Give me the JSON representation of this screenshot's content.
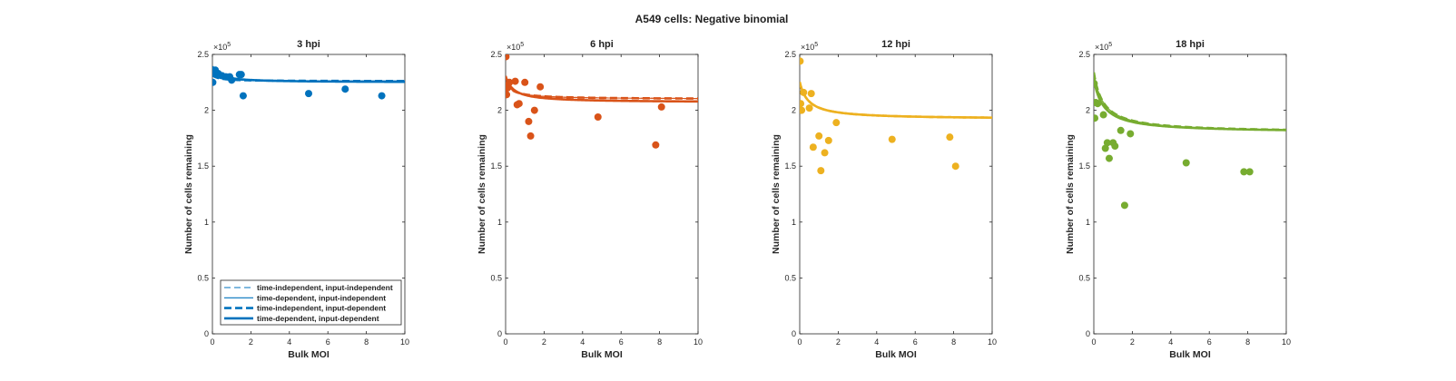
{
  "figure_title": "A549 cells: Negative binomial",
  "chart_data": [
    {
      "type": "scatter",
      "title": "3 hpi",
      "xlabel": "Bulk MOI",
      "ylabel": "Number of cells remaining",
      "xlim": [
        0,
        10
      ],
      "ylim": [
        0,
        250000
      ],
      "xticks": [
        "0",
        "2",
        "4",
        "6",
        "8",
        "10"
      ],
      "yticks": [
        "0",
        "0.5",
        "1",
        "1.5",
        "2",
        "2.5"
      ],
      "y_exponent": "×10",
      "y_exponent_power": "5",
      "color": "#0072BD",
      "points": [
        [
          0.02,
          225000
        ],
        [
          0.05,
          233000
        ],
        [
          0.1,
          235000
        ],
        [
          0.15,
          236000
        ],
        [
          0.3,
          233000
        ],
        [
          0.5,
          231000
        ],
        [
          0.7,
          230000
        ],
        [
          0.9,
          230000
        ],
        [
          1.0,
          227000
        ],
        [
          1.4,
          232000
        ],
        [
          1.5,
          232000
        ],
        [
          1.6,
          213000
        ],
        [
          5.0,
          215000
        ],
        [
          6.9,
          219000
        ],
        [
          8.8,
          213000
        ]
      ],
      "series": [
        {
          "name": "time-independent, input-independent",
          "style": "dashed-thin",
          "a": 226000,
          "b": 1900,
          "c": 0.35
        },
        {
          "name": "time-dependent, input-independent",
          "style": "solid-thin",
          "a": 226000,
          "b": 1900,
          "c": 0.35
        },
        {
          "name": "time-independent, input-dependent",
          "style": "dashed-thick",
          "a": 226000,
          "b": 1900,
          "c": 0.35
        },
        {
          "name": "time-dependent, input-dependent",
          "style": "solid-thick",
          "a": 225000,
          "b": 5000,
          "c": 0.35
        }
      ],
      "legend": "bottom"
    },
    {
      "type": "scatter",
      "title": "6 hpi",
      "xlabel": "Bulk MOI",
      "ylabel": "Number of cells remaining",
      "xlim": [
        0,
        10
      ],
      "ylim": [
        0,
        250000
      ],
      "xticks": [
        "0",
        "2",
        "4",
        "6",
        "8",
        "10"
      ],
      "yticks": [
        "0",
        "0.5",
        "1",
        "1.5",
        "2",
        "2.5"
      ],
      "y_exponent": "×10",
      "y_exponent_power": "5",
      "color": "#D95319",
      "points": [
        [
          0.02,
          248000
        ],
        [
          0.05,
          214000
        ],
        [
          0.1,
          220000
        ],
        [
          0.2,
          225000
        ],
        [
          0.5,
          226000
        ],
        [
          0.6,
          205000
        ],
        [
          0.7,
          206000
        ],
        [
          1.0,
          225000
        ],
        [
          1.2,
          190000
        ],
        [
          1.3,
          177000
        ],
        [
          1.5,
          200000
        ],
        [
          1.8,
          221000
        ],
        [
          4.8,
          194000
        ],
        [
          7.8,
          169000
        ],
        [
          8.1,
          203000
        ]
      ],
      "series": [
        {
          "name": "time-independent, input-independent",
          "style": "dashed-thin",
          "a": 210000,
          "b": 6000,
          "c": 0.4
        },
        {
          "name": "time-dependent, input-independent",
          "style": "solid-thin",
          "a": 210000,
          "b": 6000,
          "c": 0.4
        },
        {
          "name": "time-independent, input-dependent",
          "style": "dashed-thick",
          "a": 210000,
          "b": 6000,
          "c": 0.4
        },
        {
          "name": "time-dependent, input-dependent",
          "style": "solid-thick",
          "a": 207000,
          "b": 9500,
          "c": 0.4
        }
      ]
    },
    {
      "type": "scatter",
      "title": "12 hpi",
      "xlabel": "Bulk MOI",
      "ylabel": "Number of cells remaining",
      "xlim": [
        0,
        10
      ],
      "ylim": [
        0,
        250000
      ],
      "xticks": [
        "0",
        "2",
        "4",
        "6",
        "8",
        "10"
      ],
      "yticks": [
        "0",
        "0.5",
        "1",
        "1.5",
        "2",
        "2.5"
      ],
      "y_exponent": "×10",
      "y_exponent_power": "5",
      "color": "#EDB120",
      "points": [
        [
          0.02,
          244000
        ],
        [
          0.05,
          206000
        ],
        [
          0.1,
          200000
        ],
        [
          0.2,
          216000
        ],
        [
          0.5,
          202000
        ],
        [
          0.6,
          215000
        ],
        [
          0.7,
          167000
        ],
        [
          1.0,
          177000
        ],
        [
          1.1,
          146000
        ],
        [
          1.3,
          162000
        ],
        [
          1.5,
          173000
        ],
        [
          1.9,
          189000
        ],
        [
          4.8,
          174000
        ],
        [
          7.8,
          176000
        ],
        [
          8.1,
          150000
        ]
      ],
      "series": [
        {
          "name": "time-independent, input-independent",
          "style": "dashed-thin",
          "a": 192000,
          "b": 15000,
          "c": 0.45
        },
        {
          "name": "time-dependent, input-independent",
          "style": "solid-thin",
          "a": 192000,
          "b": 15000,
          "c": 0.45
        },
        {
          "name": "time-independent, input-dependent",
          "style": "dashed-thick",
          "a": 192000,
          "b": 15000,
          "c": 0.45
        },
        {
          "name": "time-dependent, input-dependent",
          "style": "solid-thick",
          "a": 192000,
          "b": 15000,
          "c": 0.45
        }
      ]
    },
    {
      "type": "scatter",
      "title": "18 hpi",
      "xlabel": "Bulk MOI",
      "ylabel": "Number of cells remaining",
      "xlim": [
        0,
        10
      ],
      "ylim": [
        0,
        250000
      ],
      "xticks": [
        "0",
        "2",
        "4",
        "6",
        "8",
        "10"
      ],
      "yticks": [
        "0",
        "0.5",
        "1",
        "1.5",
        "2",
        "2.5"
      ],
      "y_exponent": "×10",
      "y_exponent_power": "5",
      "color": "#77AC30",
      "points": [
        [
          0.02,
          224000
        ],
        [
          0.05,
          193000
        ],
        [
          0.1,
          207000
        ],
        [
          0.2,
          206000
        ],
        [
          0.5,
          196000
        ],
        [
          0.6,
          166000
        ],
        [
          0.7,
          171000
        ],
        [
          0.8,
          157000
        ],
        [
          1.0,
          171000
        ],
        [
          1.1,
          168000
        ],
        [
          1.4,
          182000
        ],
        [
          1.6,
          115000
        ],
        [
          1.9,
          179000
        ],
        [
          4.8,
          153000
        ],
        [
          7.8,
          145000
        ],
        [
          8.1,
          145000
        ]
      ],
      "series": [
        {
          "name": "time-independent, input-independent",
          "style": "dashed-thin",
          "a": 180000,
          "b": 27000,
          "c": 0.5
        },
        {
          "name": "time-dependent, input-independent",
          "style": "solid-thin",
          "a": 180000,
          "b": 27000,
          "c": 0.5
        },
        {
          "name": "time-independent, input-dependent",
          "style": "dashed-thick",
          "a": 180000,
          "b": 27000,
          "c": 0.5
        },
        {
          "name": "time-dependent, input-dependent",
          "style": "solid-thick",
          "a": 180000,
          "b": 24000,
          "c": 0.5
        }
      ]
    }
  ]
}
